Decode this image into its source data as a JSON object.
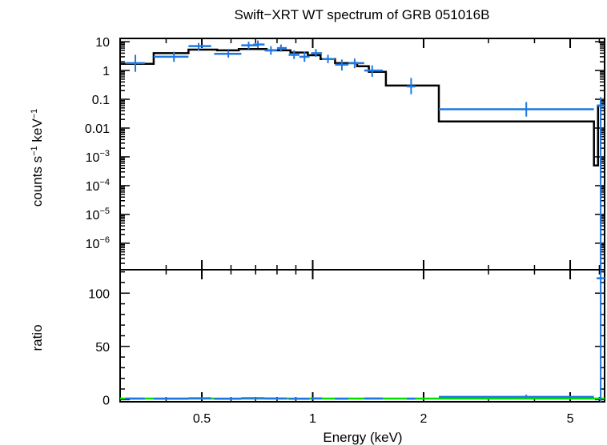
{
  "chart_data": {
    "type": "scatter",
    "title": "Swift−XRT WT spectrum of GRB 051016B",
    "xlabel": "Energy (keV)",
    "x_scale": "log",
    "xlim": [
      0.3,
      6.2
    ],
    "x_ticks": [
      {
        "value": 0.5,
        "label": "0.5"
      },
      {
        "value": 1,
        "label": "1"
      },
      {
        "value": 2,
        "label": "2"
      },
      {
        "value": 5,
        "label": "5"
      }
    ],
    "colors": {
      "data": "#1f78e0",
      "model": "#000000",
      "unity": "#00e000",
      "axes": "#000000"
    },
    "panels": {
      "spectrum": {
        "ylabel_main": "counts s",
        "ylabel_sup1": "−1",
        "ylabel_mid": " keV",
        "ylabel_sup2": "−1",
        "y_scale": "log",
        "ylim": [
          1.2e-07,
          13
        ],
        "y_ticks": [
          {
            "value": 10,
            "base": "10",
            "exp": ""
          },
          {
            "value": 1,
            "base": "1",
            "exp": ""
          },
          {
            "value": 0.1,
            "base": "0.1",
            "exp": ""
          },
          {
            "value": 0.01,
            "base": "0.01",
            "exp": ""
          },
          {
            "value": 0.001,
            "base": "10",
            "exp": "−3"
          },
          {
            "value": 0.0001,
            "base": "10",
            "exp": "−4"
          },
          {
            "value": 1e-05,
            "base": "10",
            "exp": "−5"
          },
          {
            "value": 1e-06,
            "base": "10",
            "exp": "−6"
          }
        ],
        "data": [
          {
            "x": 0.33,
            "x_lo": 0.31,
            "x_hi": 0.35,
            "y": 1.8,
            "y_lo": 0.9,
            "y_hi": 3.5
          },
          {
            "x": 0.42,
            "x_lo": 0.37,
            "x_hi": 0.46,
            "y": 3.0,
            "y_lo": 2.0,
            "y_hi": 4.5
          },
          {
            "x": 0.49,
            "x_lo": 0.46,
            "x_hi": 0.53,
            "y": 7.0,
            "y_lo": 5.0,
            "y_hi": 9.0
          },
          {
            "x": 0.59,
            "x_lo": 0.54,
            "x_hi": 0.64,
            "y": 3.8,
            "y_lo": 2.8,
            "y_hi": 5.0
          },
          {
            "x": 0.67,
            "x_lo": 0.64,
            "x_hi": 0.71,
            "y": 7.5,
            "y_lo": 5.5,
            "y_hi": 10.0
          },
          {
            "x": 0.71,
            "x_lo": 0.69,
            "x_hi": 0.74,
            "y": 8.0,
            "y_lo": 6.0,
            "y_hi": 11.0
          },
          {
            "x": 0.77,
            "x_lo": 0.74,
            "x_hi": 0.8,
            "y": 5.0,
            "y_lo": 3.5,
            "y_hi": 7.0
          },
          {
            "x": 0.82,
            "x_lo": 0.8,
            "x_hi": 0.85,
            "y": 6.0,
            "y_lo": 4.5,
            "y_hi": 8.0
          },
          {
            "x": 0.89,
            "x_lo": 0.86,
            "x_hi": 0.92,
            "y": 3.5,
            "y_lo": 2.5,
            "y_hi": 5.0
          },
          {
            "x": 0.95,
            "x_lo": 0.92,
            "x_hi": 0.98,
            "y": 3.0,
            "y_lo": 2.0,
            "y_hi": 4.5
          },
          {
            "x": 1.02,
            "x_lo": 0.99,
            "x_hi": 1.06,
            "y": 4.0,
            "y_lo": 3.0,
            "y_hi": 5.5
          },
          {
            "x": 1.1,
            "x_lo": 1.06,
            "x_hi": 1.15,
            "y": 2.5,
            "y_lo": 1.8,
            "y_hi": 3.5
          },
          {
            "x": 1.2,
            "x_lo": 1.15,
            "x_hi": 1.25,
            "y": 1.6,
            "y_lo": 1.0,
            "y_hi": 2.4
          },
          {
            "x": 1.3,
            "x_lo": 1.25,
            "x_hi": 1.38,
            "y": 1.8,
            "y_lo": 1.2,
            "y_hi": 2.6
          },
          {
            "x": 1.45,
            "x_lo": 1.38,
            "x_hi": 1.55,
            "y": 1.0,
            "y_lo": 0.6,
            "y_hi": 1.5
          },
          {
            "x": 1.85,
            "x_lo": 1.8,
            "x_hi": 1.9,
            "y": 0.28,
            "y_lo": 0.15,
            "y_hi": 0.55
          },
          {
            "x": 3.8,
            "x_lo": 2.2,
            "x_hi": 5.8,
            "y": 0.045,
            "y_lo": 0.025,
            "y_hi": 0.08
          },
          {
            "x": 6.05,
            "x_lo": 5.9,
            "x_hi": 6.2,
            "y": 0.06,
            "y_lo": 1.2e-07,
            "y_hi": 0.12
          }
        ],
        "model_steps": [
          {
            "x0": 0.3,
            "x1": 0.37,
            "y": 1.7
          },
          {
            "x0": 0.37,
            "x1": 0.46,
            "y": 4.0
          },
          {
            "x0": 0.46,
            "x1": 0.55,
            "y": 5.3
          },
          {
            "x0": 0.55,
            "x1": 0.63,
            "y": 5.0
          },
          {
            "x0": 0.63,
            "x1": 0.75,
            "y": 5.6
          },
          {
            "x0": 0.75,
            "x1": 0.87,
            "y": 5.0
          },
          {
            "x0": 0.87,
            "x1": 0.97,
            "y": 4.2
          },
          {
            "x0": 0.97,
            "x1": 1.05,
            "y": 3.4
          },
          {
            "x0": 1.05,
            "x1": 1.15,
            "y": 2.5
          },
          {
            "x0": 1.15,
            "x1": 1.32,
            "y": 1.8
          },
          {
            "x0": 1.32,
            "x1": 1.42,
            "y": 1.4
          },
          {
            "x0": 1.42,
            "x1": 1.58,
            "y": 0.9
          },
          {
            "x0": 1.58,
            "x1": 2.2,
            "y": 0.3
          },
          {
            "x0": 2.2,
            "x1": 5.8,
            "y": 0.017
          },
          {
            "x0": 5.8,
            "x1": 5.95,
            "y": 0.0005
          },
          {
            "x0": 5.95,
            "x1": 6.2,
            "y": 0.06
          }
        ]
      },
      "ratio": {
        "ylabel": "ratio",
        "ylim": [
          -2,
          122
        ],
        "y_ticks": [
          {
            "value": 0,
            "label": "0"
          },
          {
            "value": 50,
            "label": "50"
          },
          {
            "value": 100,
            "label": "100"
          }
        ],
        "unity_line": 1,
        "data": [
          {
            "x": 0.33,
            "x_lo": 0.31,
            "x_hi": 0.35,
            "y": 1.0,
            "y_lo": 0.5,
            "y_hi": 1.8
          },
          {
            "x": 0.42,
            "x_lo": 0.37,
            "x_hi": 0.46,
            "y": 0.9,
            "y_lo": 0.6,
            "y_hi": 1.2
          },
          {
            "x": 0.49,
            "x_lo": 0.46,
            "x_hi": 0.53,
            "y": 1.3,
            "y_lo": 1.0,
            "y_hi": 1.6
          },
          {
            "x": 0.59,
            "x_lo": 0.54,
            "x_hi": 0.64,
            "y": 0.8,
            "y_lo": 0.6,
            "y_hi": 1.0
          },
          {
            "x": 0.69,
            "x_lo": 0.64,
            "x_hi": 0.74,
            "y": 1.4,
            "y_lo": 1.1,
            "y_hi": 1.8
          },
          {
            "x": 0.79,
            "x_lo": 0.74,
            "x_hi": 0.85,
            "y": 1.1,
            "y_lo": 0.8,
            "y_hi": 1.4
          },
          {
            "x": 0.92,
            "x_lo": 0.86,
            "x_hi": 0.98,
            "y": 0.8,
            "y_lo": 0.5,
            "y_hi": 1.1
          },
          {
            "x": 1.02,
            "x_lo": 0.99,
            "x_hi": 1.06,
            "y": 1.2,
            "y_lo": 0.9,
            "y_hi": 1.6
          },
          {
            "x": 1.2,
            "x_lo": 1.15,
            "x_hi": 1.25,
            "y": 0.9,
            "y_lo": 0.6,
            "y_hi": 1.3
          },
          {
            "x": 1.45,
            "x_lo": 1.38,
            "x_hi": 1.55,
            "y": 1.1,
            "y_lo": 0.7,
            "y_hi": 1.6
          },
          {
            "x": 1.85,
            "x_lo": 1.8,
            "x_hi": 1.9,
            "y": 0.9,
            "y_lo": 0.5,
            "y_hi": 1.8
          },
          {
            "x": 3.8,
            "x_lo": 2.2,
            "x_hi": 5.8,
            "y": 2.6,
            "y_lo": 1.5,
            "y_hi": 4.7
          },
          {
            "x": 6.05,
            "x_lo": 5.9,
            "x_hi": 6.2,
            "y": 114,
            "y_lo": -2,
            "y_hi": 122
          }
        ]
      }
    }
  }
}
